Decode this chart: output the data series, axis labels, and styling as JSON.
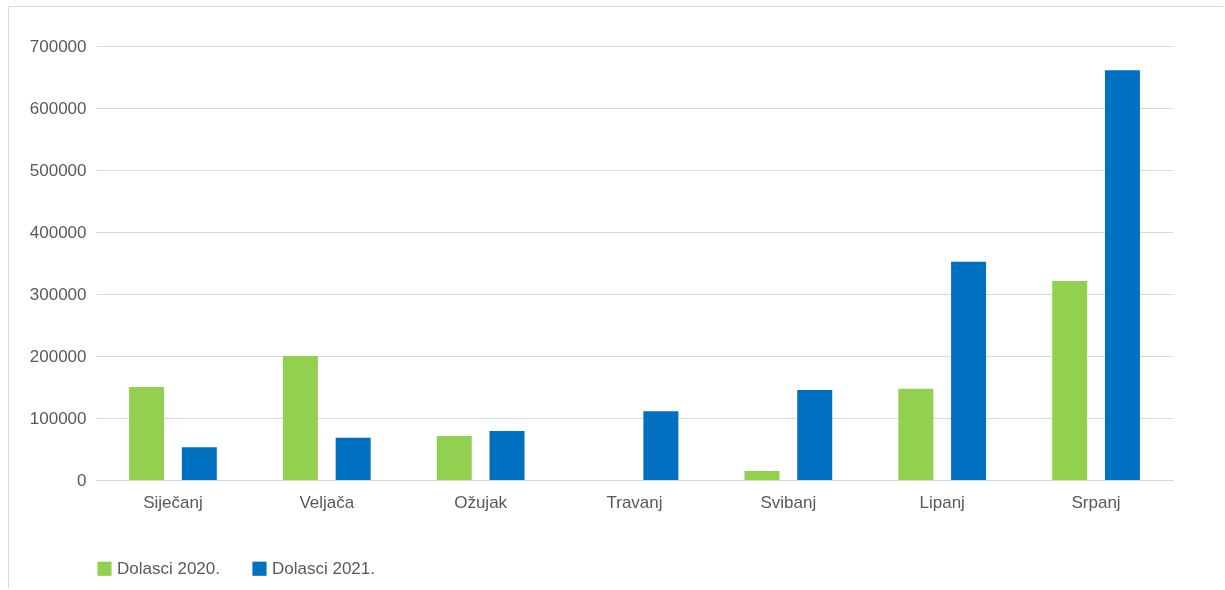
{
  "chart_data": {
    "type": "bar",
    "categories": [
      "Siječanj",
      "Veljača",
      "Ožujak",
      "Travanj",
      "Svibanj",
      "Lipanj",
      "Srpanj"
    ],
    "series": [
      {
        "name": "Dolasci 2020.",
        "color": "#92d050",
        "values": [
          150000,
          200000,
          71000,
          0,
          14500,
          147000,
          321000
        ]
      },
      {
        "name": "Dolasci 2021.",
        "color": "#0070c0",
        "values": [
          53000,
          68000,
          79000,
          111000,
          145000,
          352000,
          661000
        ]
      }
    ],
    "ylim": [
      0,
      700000
    ],
    "yticks": [
      0,
      100000,
      200000,
      300000,
      400000,
      500000,
      600000,
      700000
    ],
    "grid": "y",
    "legend": "bottom"
  }
}
